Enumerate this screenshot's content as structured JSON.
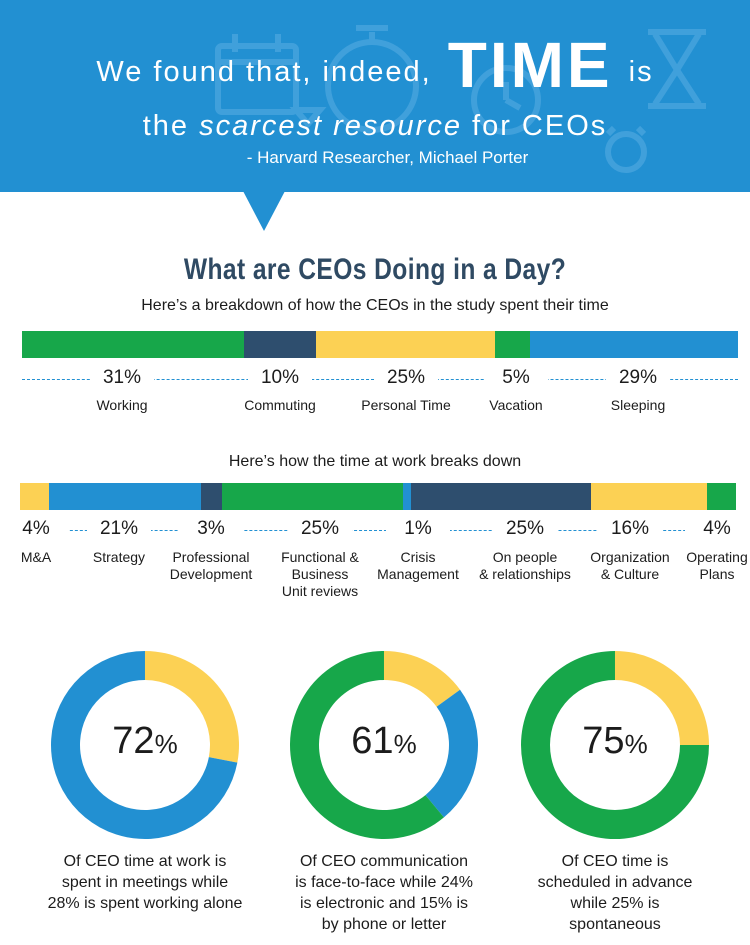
{
  "header": {
    "quote_part1": "We found that, indeed,",
    "quote_big": "TIME",
    "quote_part2": "is",
    "quote_line2_a": "the",
    "quote_line2_em": "scarcest resource",
    "quote_line2_b": "for CEOs",
    "attribution": "- Harvard Researcher, Michael Porter"
  },
  "colors": {
    "green": "#17a74a",
    "navy": "#2e4e6e",
    "yellow": "#fcd154",
    "blue": "#2290d2"
  },
  "icons": [
    "calendar-icon",
    "stopwatch-icon",
    "hourglass-icon",
    "alarm-clock-icon"
  ],
  "title": "What are CEOs Doing in a Day?",
  "subtitle_day": "Here’s a breakdown of how the CEOs in the study spent their time",
  "subtitle_work": "Here’s how the time at work breaks down",
  "chart_data": [
    {
      "type": "bar",
      "orientation": "stacked-horizontal",
      "categories": [
        "Working",
        "Commuting",
        "Personal Time",
        "Vacation",
        "Sleeping"
      ],
      "values": [
        31,
        10,
        25,
        5,
        29
      ],
      "display": [
        "31%",
        "10%",
        "25%",
        "5%",
        "29%"
      ],
      "colors": [
        "#17a74a",
        "#2e4e6e",
        "#fcd154",
        "#17a74a",
        "#2290d2"
      ]
    },
    {
      "type": "bar",
      "orientation": "stacked-horizontal",
      "categories": [
        "M&A",
        "Strategy",
        "Professional Development",
        "Functional & Business Unit reviews",
        "Crisis Management",
        "On people & relationships",
        "Organization & Culture",
        "Operating Plans"
      ],
      "label_lines": [
        [
          "M&A"
        ],
        [
          "Strategy"
        ],
        [
          "Professional",
          "Development"
        ],
        [
          "Functional &",
          "Business",
          "Unit reviews"
        ],
        [
          "Crisis",
          "Management"
        ],
        [
          "On people",
          "& relationships"
        ],
        [
          "Organization",
          "& Culture"
        ],
        [
          "Operating",
          "Plans"
        ]
      ],
      "values": [
        4,
        21,
        3,
        25,
        1,
        25,
        16,
        4
      ],
      "display": [
        "4%",
        "21%",
        "3%",
        "25%",
        "1%",
        "25%",
        "16%",
        "4%"
      ],
      "colors": [
        "#fcd154",
        "#2290d2",
        "#2e4e6e",
        "#17a74a",
        "#2290d2",
        "#2e4e6e",
        "#fcd154",
        "#17a74a"
      ]
    },
    {
      "type": "pie",
      "variant": "donut",
      "headline_number": "72",
      "headline_unit": "%",
      "slices": [
        {
          "label": "working alone",
          "value": 28,
          "color": "#fcd154"
        },
        {
          "label": "meetings",
          "value": 72,
          "color": "#2290d2"
        }
      ],
      "caption": [
        "Of CEO time at work is",
        "spent in meetings while",
        "28% is spent working alone"
      ]
    },
    {
      "type": "pie",
      "variant": "donut",
      "headline_number": "61",
      "headline_unit": "%",
      "slices": [
        {
          "label": "phone or letter",
          "value": 15,
          "color": "#fcd154"
        },
        {
          "label": "electronic",
          "value": 24,
          "color": "#2290d2"
        },
        {
          "label": "face-to-face",
          "value": 61,
          "color": "#17a74a"
        }
      ],
      "caption": [
        "Of CEO communication",
        "is face-to-face while 24%",
        "is electronic and 15% is",
        "by phone or letter"
      ]
    },
    {
      "type": "pie",
      "variant": "donut",
      "headline_number": "75",
      "headline_unit": "%",
      "slices": [
        {
          "label": "spontaneous",
          "value": 25,
          "color": "#fcd154"
        },
        {
          "label": "scheduled in advance",
          "value": 75,
          "color": "#17a74a"
        }
      ],
      "caption": [
        "Of CEO time is",
        "scheduled in advance",
        "while 25% is",
        "spontaneous"
      ]
    }
  ]
}
